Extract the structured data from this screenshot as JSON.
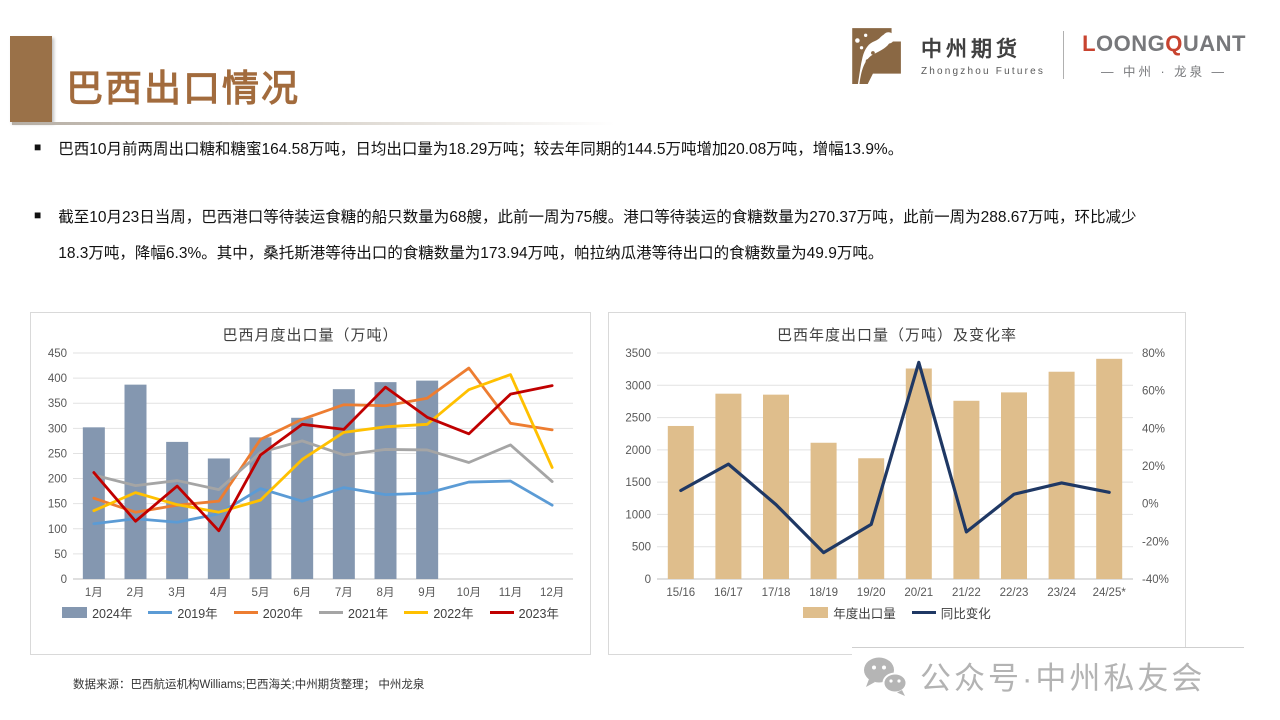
{
  "header": {
    "title": "巴西出口情况",
    "logo": {
      "brand_cn": "中州期货",
      "brand_en": "Zhongzhou Futures",
      "brand2_parts": [
        {
          "text": "L",
          "tone": "red"
        },
        {
          "text": "OONG",
          "tone": "gray"
        },
        {
          "text": "Q",
          "tone": "red"
        },
        {
          "text": "UANT",
          "tone": "gray"
        }
      ],
      "brand2_sub": "— 中州 · 龙泉 —"
    }
  },
  "bullets": [
    {
      "marker": "■",
      "text": "巴西10月前两周出口糖和糖蜜164.58万吨，日均出口量为18.29万吨；较去年同期的144.5万吨增加20.08万吨，增幅13.9%。"
    },
    {
      "marker": "■",
      "text": "截至10月23日当周，巴西港口等待装运食糖的船只数量为68艘，此前一周为75艘。港口等待装运的食糖数量为270.37万吨，此前一周为288.67万吨，环比减少18.3万吨，降幅6.3%。其中，桑托斯港等待出口的食糖数量为173.94万吨，帕拉纳瓜港等待出口的食糖数量为49.9万吨。"
    }
  ],
  "chart_data": [
    {
      "type": "bar",
      "subtype": "combo-bar-line",
      "title": "巴西月度出口量（万吨）",
      "xlabel": "",
      "ylabel": "",
      "categories": [
        "1月",
        "2月",
        "3月",
        "4月",
        "5月",
        "6月",
        "7月",
        "8月",
        "9月",
        "10月",
        "11月",
        "12月"
      ],
      "ylim": [
        0,
        450
      ],
      "ytick_step": 50,
      "grid": true,
      "legend_position": "bottom",
      "bar_series": [
        {
          "name": "2024年",
          "color": "#8497B0",
          "values": [
            302,
            387,
            273,
            240,
            282,
            321,
            378,
            392,
            395,
            null,
            null,
            null
          ]
        }
      ],
      "line_series": [
        {
          "name": "2019年",
          "color": "#5B9BD5",
          "values": [
            110,
            120,
            113,
            130,
            180,
            155,
            182,
            168,
            171,
            193,
            195,
            147
          ]
        },
        {
          "name": "2020年",
          "color": "#ED7D31",
          "values": [
            161,
            133,
            147,
            155,
            278,
            318,
            347,
            345,
            360,
            420,
            310,
            297
          ]
        },
        {
          "name": "2021年",
          "color": "#A5A5A5",
          "values": [
            207,
            186,
            196,
            178,
            252,
            275,
            247,
            258,
            257,
            232,
            267,
            194
          ]
        },
        {
          "name": "2022年",
          "color": "#FFC000",
          "values": [
            136,
            172,
            148,
            133,
            157,
            238,
            292,
            303,
            308,
            377,
            407,
            222
          ]
        },
        {
          "name": "2023年",
          "color": "#C00000",
          "values": [
            212,
            115,
            185,
            96,
            247,
            308,
            298,
            382,
            322,
            289,
            368,
            385
          ]
        }
      ]
    },
    {
      "type": "bar",
      "subtype": "combo-bar-line-dual-axis",
      "title": "巴西年度出口量（万吨）及变化率",
      "xlabel": "",
      "ylabel": "",
      "categories": [
        "15/16",
        "16/17",
        "17/18",
        "18/19",
        "19/20",
        "20/21",
        "21/22",
        "22/23",
        "23/24",
        "24/25*"
      ],
      "left_ylim": [
        0,
        3500
      ],
      "left_ytick_step": 500,
      "right_ylim": [
        -40,
        80
      ],
      "right_ytick_step": 20,
      "right_unit": "%",
      "grid": true,
      "legend_position": "bottom",
      "bar_series": [
        {
          "name": "年度出口量",
          "color": "#DFBE8C",
          "values": [
            2370,
            2870,
            2855,
            2110,
            1870,
            3260,
            2760,
            2890,
            3210,
            3410
          ]
        }
      ],
      "line_series": [
        {
          "name": "同比变化",
          "color": "#1F3864",
          "axis": "right",
          "values": [
            7,
            21,
            -0.5,
            -26,
            -11,
            75,
            -15,
            5,
            11,
            6
          ]
        }
      ]
    }
  ],
  "footer": {
    "source": "数据来源：巴西航运机构Williams;巴西海关;中州期货整理； 中州龙泉",
    "watermark_text": "公众号·中州私友会"
  },
  "colors": {
    "title_brown": "#A26B3D",
    "accent_bar_brown": "#9A7148",
    "brand_red": "#C8432F",
    "brand_gray": "#77787B",
    "monthly_bar": "#8497B0",
    "annual_bar": "#DFBE8C",
    "annual_line": "#1F3864",
    "watermark_gray": "#b3b3b3"
  }
}
